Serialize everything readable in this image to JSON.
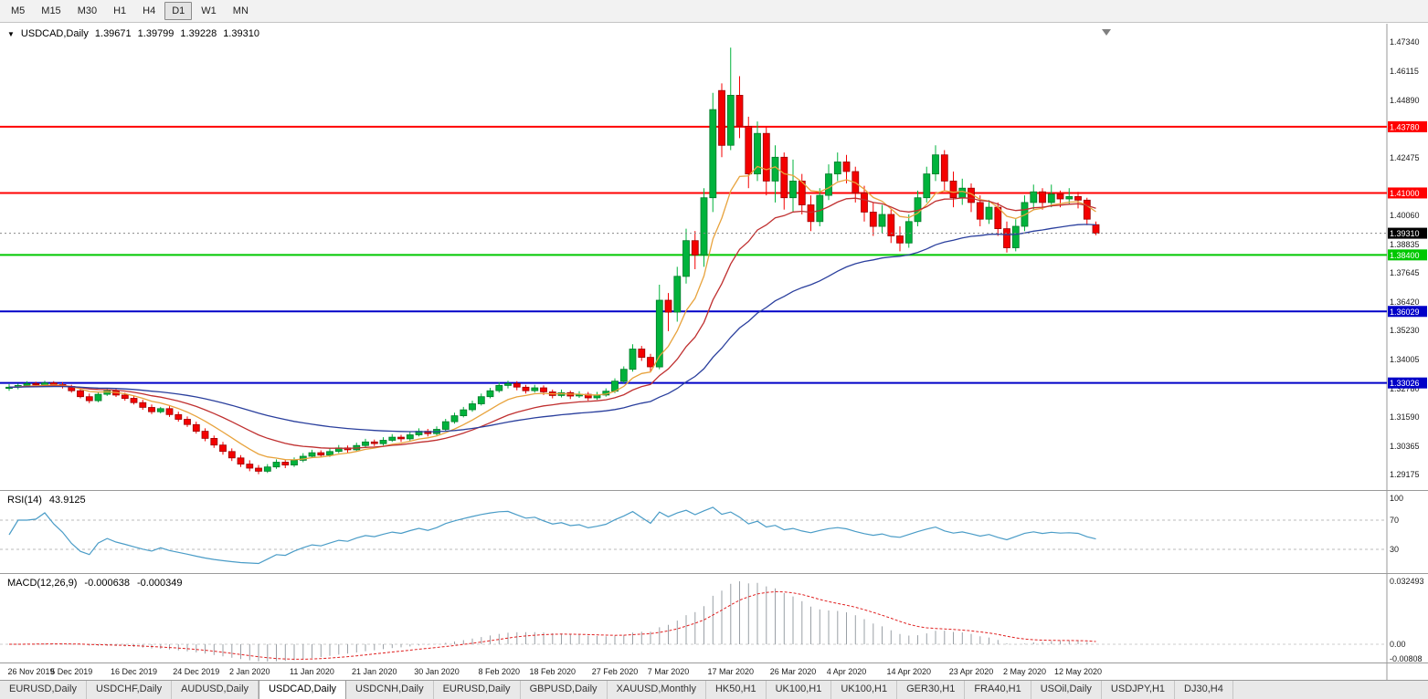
{
  "toolbar": {
    "timeframes": [
      {
        "label": "M5",
        "active": false
      },
      {
        "label": "M15",
        "active": false
      },
      {
        "label": "M30",
        "active": false
      },
      {
        "label": "H1",
        "active": false
      },
      {
        "label": "H4",
        "active": false
      },
      {
        "label": "D1",
        "active": true
      },
      {
        "label": "W1",
        "active": false
      },
      {
        "label": "MN",
        "active": false
      }
    ]
  },
  "chart_header": {
    "dropdown_icon": "▼",
    "symbol": "USDCAD,Daily",
    "open": "1.39671",
    "high": "1.39799",
    "low": "1.39228",
    "close": "1.39310"
  },
  "indicators": {
    "rsi": {
      "label": "RSI(14)",
      "value": "43.9125",
      "levels": [
        {
          "label": "100",
          "v": 100
        },
        {
          "label": "70",
          "v": 70
        },
        {
          "label": "30",
          "v": 30
        }
      ],
      "dashed_levels": [
        70,
        30
      ],
      "line_color": "#4a9cc7"
    },
    "macd": {
      "label": "MACD(12,26,9)",
      "value_main": "-0.000638",
      "value_signal": "-0.000349",
      "axis": [
        {
          "label": "0.032493",
          "pos": "top"
        },
        {
          "label": "0.00",
          "pos": "zero"
        },
        {
          "label": "-0.00808",
          "pos": "bottom"
        }
      ],
      "histogram_color": "#9aa0a6",
      "signal_color": "#e02020"
    }
  },
  "price_axis": [
    "1.47340",
    "1.46115",
    "1.44890",
    "1.42475",
    "1.40060",
    "1.38835",
    "1.37645",
    "1.36420",
    "1.35230",
    "1.34005",
    "1.32780",
    "1.31590",
    "1.30365",
    "1.29175"
  ],
  "hlines": [
    {
      "price": 1.4378,
      "label": "1.43780",
      "color": "#FF0000",
      "width": 2
    },
    {
      "price": 1.41,
      "label": "1.41000",
      "color": "#FF0000",
      "width": 2
    },
    {
      "price": 1.384,
      "label": "1.38400",
      "color": "#00C800",
      "width": 2
    },
    {
      "price": 1.36029,
      "label": "1.36029",
      "color": "#0000C8",
      "width": 2
    },
    {
      "price": 1.33026,
      "label": "1.33026",
      "color": "#0000C8",
      "width": 2
    }
  ],
  "current_price": {
    "price": 1.3931,
    "label": "1.39310",
    "color": "#000000"
  },
  "time_axis": [
    {
      "index": 0,
      "label": "26 Nov 2019"
    },
    {
      "index": 7,
      "label": "5 Dec 2019"
    },
    {
      "index": 14,
      "label": "16 Dec 2019"
    },
    {
      "index": 21,
      "label": "24 Dec 2019"
    },
    {
      "index": 27,
      "label": "2 Jan 2020"
    },
    {
      "index": 34,
      "label": "11 Jan 2020"
    },
    {
      "index": 41,
      "label": "21 Jan 2020"
    },
    {
      "index": 48,
      "label": "30 Jan 2020"
    },
    {
      "index": 55,
      "label": "8 Feb 2020"
    },
    {
      "index": 61,
      "label": "18 Feb 2020"
    },
    {
      "index": 68,
      "label": "27 Feb 2020"
    },
    {
      "index": 74,
      "label": "7 Mar 2020"
    },
    {
      "index": 81,
      "label": "17 Mar 2020"
    },
    {
      "index": 88,
      "label": "26 Mar 2020"
    },
    {
      "index": 94,
      "label": "4 Apr 2020"
    },
    {
      "index": 101,
      "label": "14 Apr 2020"
    },
    {
      "index": 108,
      "label": "23 Apr 2020"
    },
    {
      "index": 114,
      "label": "2 May 2020"
    },
    {
      "index": 120,
      "label": "12 May 2020"
    }
  ],
  "tabs": [
    {
      "label": "EURUSD,Daily",
      "active": false
    },
    {
      "label": "USDCHF,Daily",
      "active": false
    },
    {
      "label": "AUDUSD,Daily",
      "active": false
    },
    {
      "label": "USDCAD,Daily",
      "active": true
    },
    {
      "label": "USDCNH,Daily",
      "active": false
    },
    {
      "label": "EURUSD,Daily",
      "active": false
    },
    {
      "label": "GBPUSD,Daily",
      "active": false
    },
    {
      "label": "XAUUSD,Monthly",
      "active": false
    },
    {
      "label": "HK50,H1",
      "active": false
    },
    {
      "label": "UK100,H1",
      "active": false
    },
    {
      "label": "UK100,H1",
      "active": false
    },
    {
      "label": "GER30,H1",
      "active": false
    },
    {
      "label": "FRA40,H1",
      "active": false
    },
    {
      "label": "USOil,Daily",
      "active": false
    },
    {
      "label": "USDJPY,H1",
      "active": false
    },
    {
      "label": "DJ30,H4",
      "active": false
    }
  ],
  "chart_data": {
    "type": "candlestick",
    "symbol": "USDCAD",
    "timeframe": "Daily",
    "bull_color": "#00B33C",
    "bear_color": "#F40000",
    "rsi_period": 14,
    "macd_params": [
      12,
      26,
      9
    ],
    "moving_averages": [
      {
        "name": "fast",
        "period": 8,
        "color": "#E8A33D"
      },
      {
        "name": "medium",
        "period": 18,
        "color": "#C03030"
      },
      {
        "name": "slow",
        "period": 45,
        "color": "#2A3F9D"
      }
    ],
    "candles": [
      [
        1.328,
        1.3298,
        1.327,
        1.3285
      ],
      [
        1.3285,
        1.33,
        1.3276,
        1.3292
      ],
      [
        1.3292,
        1.331,
        1.3285,
        1.33
      ],
      [
        1.33,
        1.3308,
        1.3286,
        1.3294
      ],
      [
        1.3294,
        1.3312,
        1.3288,
        1.3303
      ],
      [
        1.3303,
        1.331,
        1.3288,
        1.3296
      ],
      [
        1.3296,
        1.3305,
        1.328,
        1.3288
      ],
      [
        1.3288,
        1.3295,
        1.3262,
        1.327
      ],
      [
        1.327,
        1.3278,
        1.3238,
        1.3245
      ],
      [
        1.3245,
        1.3258,
        1.3218,
        1.3228
      ],
      [
        1.3228,
        1.3262,
        1.3222,
        1.3255
      ],
      [
        1.3255,
        1.328,
        1.3248,
        1.327
      ],
      [
        1.327,
        1.3278,
        1.3244,
        1.3252
      ],
      [
        1.3252,
        1.3262,
        1.3228,
        1.3238
      ],
      [
        1.3238,
        1.325,
        1.3212,
        1.322
      ],
      [
        1.322,
        1.3232,
        1.319,
        1.32
      ],
      [
        1.32,
        1.3212,
        1.3172,
        1.3182
      ],
      [
        1.3182,
        1.3202,
        1.3175,
        1.3195
      ],
      [
        1.3195,
        1.3205,
        1.316,
        1.317
      ],
      [
        1.317,
        1.3182,
        1.314,
        1.315
      ],
      [
        1.315,
        1.3162,
        1.3118,
        1.3128
      ],
      [
        1.3128,
        1.314,
        1.309,
        1.31
      ],
      [
        1.31,
        1.3112,
        1.3058,
        1.307
      ],
      [
        1.307,
        1.3082,
        1.303,
        1.3042
      ],
      [
        1.3042,
        1.3055,
        1.3002,
        1.3015
      ],
      [
        1.3015,
        1.3028,
        1.2975,
        1.2988
      ],
      [
        1.2988,
        1.3,
        1.295,
        1.2962
      ],
      [
        1.2962,
        1.2978,
        1.2932,
        1.2945
      ],
      [
        1.2945,
        1.2958,
        1.292,
        1.2932
      ],
      [
        1.2932,
        1.2962,
        1.2925,
        1.295
      ],
      [
        1.295,
        1.2982,
        1.2942,
        1.297
      ],
      [
        1.297,
        1.298,
        1.2945,
        1.2958
      ],
      [
        1.2958,
        1.299,
        1.295,
        1.2978
      ],
      [
        1.2978,
        1.3008,
        1.297,
        1.2995
      ],
      [
        1.2995,
        1.3022,
        1.2988,
        1.301
      ],
      [
        1.301,
        1.302,
        1.299,
        1.3
      ],
      [
        1.3,
        1.3028,
        1.2992,
        1.3015
      ],
      [
        1.3015,
        1.3042,
        1.3008,
        1.303
      ],
      [
        1.303,
        1.304,
        1.301,
        1.3022
      ],
      [
        1.3022,
        1.3052,
        1.3015,
        1.304
      ],
      [
        1.304,
        1.3068,
        1.3032,
        1.3055
      ],
      [
        1.3055,
        1.3065,
        1.3038,
        1.3048
      ],
      [
        1.3048,
        1.3075,
        1.304,
        1.3062
      ],
      [
        1.3062,
        1.3088,
        1.3055,
        1.3075
      ],
      [
        1.3075,
        1.3085,
        1.3055,
        1.3068
      ],
      [
        1.3068,
        1.3098,
        1.306,
        1.3085
      ],
      [
        1.3085,
        1.3112,
        1.3078,
        1.31
      ],
      [
        1.31,
        1.311,
        1.3078,
        1.309
      ],
      [
        1.309,
        1.312,
        1.3082,
        1.3108
      ],
      [
        1.3108,
        1.3152,
        1.31,
        1.314
      ],
      [
        1.314,
        1.3178,
        1.3132,
        1.3165
      ],
      [
        1.3165,
        1.3202,
        1.3158,
        1.319
      ],
      [
        1.319,
        1.3228,
        1.3182,
        1.3215
      ],
      [
        1.3215,
        1.3258,
        1.3208,
        1.3245
      ],
      [
        1.3245,
        1.3282,
        1.3238,
        1.327
      ],
      [
        1.327,
        1.3305,
        1.3262,
        1.3292
      ],
      [
        1.3292,
        1.3312,
        1.328,
        1.33
      ],
      [
        1.33,
        1.331,
        1.3272,
        1.3285
      ],
      [
        1.3285,
        1.3295,
        1.3258,
        1.327
      ],
      [
        1.327,
        1.3295,
        1.3262,
        1.3282
      ],
      [
        1.3282,
        1.3292,
        1.3252,
        1.3265
      ],
      [
        1.3265,
        1.3275,
        1.3238,
        1.325
      ],
      [
        1.325,
        1.3275,
        1.3242,
        1.3262
      ],
      [
        1.3262,
        1.327,
        1.3235,
        1.3248
      ],
      [
        1.3248,
        1.3268,
        1.324,
        1.3255
      ],
      [
        1.3255,
        1.3265,
        1.3228,
        1.324
      ],
      [
        1.324,
        1.3265,
        1.3232,
        1.3252
      ],
      [
        1.3252,
        1.328,
        1.3245,
        1.3268
      ],
      [
        1.3268,
        1.3322,
        1.326,
        1.331
      ],
      [
        1.331,
        1.3372,
        1.3302,
        1.336
      ],
      [
        1.336,
        1.3465,
        1.335,
        1.3445
      ],
      [
        1.3445,
        1.3458,
        1.3395,
        1.341
      ],
      [
        1.341,
        1.3425,
        1.335,
        1.337
      ],
      [
        1.337,
        1.3715,
        1.336,
        1.365
      ],
      [
        1.365,
        1.368,
        1.352,
        1.36
      ],
      [
        1.36,
        1.379,
        1.356,
        1.375
      ],
      [
        1.375,
        1.395,
        1.372,
        1.39
      ],
      [
        1.39,
        1.394,
        1.378,
        1.384
      ],
      [
        1.384,
        1.412,
        1.379,
        1.408
      ],
      [
        1.408,
        1.452,
        1.402,
        1.445
      ],
      [
        1.453,
        1.456,
        1.425,
        1.43
      ],
      [
        1.43,
        1.471,
        1.428,
        1.451
      ],
      [
        1.451,
        1.459,
        1.433,
        1.438
      ],
      [
        1.438,
        1.442,
        1.412,
        1.418
      ],
      [
        1.418,
        1.44,
        1.415,
        1.435
      ],
      [
        1.435,
        1.438,
        1.409,
        1.415
      ],
      [
        1.415,
        1.43,
        1.406,
        1.425
      ],
      [
        1.425,
        1.427,
        1.403,
        1.408
      ],
      [
        1.408,
        1.424,
        1.402,
        1.415
      ],
      [
        1.415,
        1.418,
        1.401,
        1.405
      ],
      [
        1.405,
        1.409,
        1.394,
        1.398
      ],
      [
        1.398,
        1.412,
        1.396,
        1.409
      ],
      [
        1.409,
        1.422,
        1.407,
        1.418
      ],
      [
        1.418,
        1.427,
        1.415,
        1.423
      ],
      [
        1.423,
        1.426,
        1.414,
        1.419
      ],
      [
        1.419,
        1.421,
        1.406,
        1.41
      ],
      [
        1.41,
        1.413,
        1.398,
        1.402
      ],
      [
        1.402,
        1.406,
        1.392,
        1.396
      ],
      [
        1.396,
        1.405,
        1.393,
        1.401
      ],
      [
        1.401,
        1.403,
        1.389,
        1.392
      ],
      [
        1.392,
        1.396,
        1.3855,
        1.389
      ],
      [
        1.389,
        1.401,
        1.387,
        1.398
      ],
      [
        1.398,
        1.411,
        1.396,
        1.408
      ],
      [
        1.408,
        1.421,
        1.406,
        1.418
      ],
      [
        1.418,
        1.43,
        1.415,
        1.426
      ],
      [
        1.426,
        1.428,
        1.411,
        1.415
      ],
      [
        1.415,
        1.419,
        1.404,
        1.408
      ],
      [
        1.408,
        1.416,
        1.405,
        1.412
      ],
      [
        1.412,
        1.414,
        1.402,
        1.406
      ],
      [
        1.406,
        1.409,
        1.396,
        1.399
      ],
      [
        1.399,
        1.407,
        1.397,
        1.404
      ],
      [
        1.404,
        1.406,
        1.392,
        1.395
      ],
      [
        1.395,
        1.398,
        1.385,
        1.387
      ],
      [
        1.387,
        1.399,
        1.3855,
        1.396
      ],
      [
        1.396,
        1.409,
        1.394,
        1.406
      ],
      [
        1.406,
        1.4135,
        1.403,
        1.4105
      ],
      [
        1.4105,
        1.412,
        1.403,
        1.406
      ],
      [
        1.406,
        1.4135,
        1.404,
        1.4095
      ],
      [
        1.4095,
        1.411,
        1.404,
        1.4075
      ],
      [
        1.4075,
        1.412,
        1.405,
        1.4085
      ],
      [
        1.4085,
        1.4105,
        1.4035,
        1.407
      ],
      [
        1.407,
        1.408,
        1.3965,
        1.399
      ],
      [
        1.39671,
        1.39799,
        1.39228,
        1.3931
      ]
    ]
  }
}
